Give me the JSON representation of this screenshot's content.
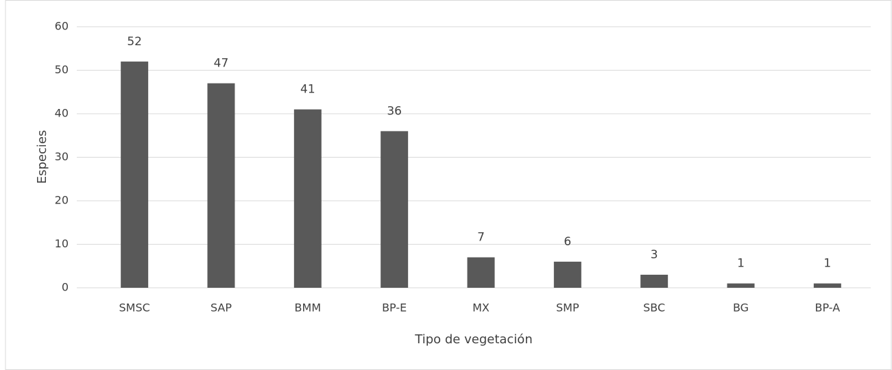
{
  "chart_data": {
    "type": "bar",
    "x_label": "Tipo de vegetación",
    "y_label": "Especies",
    "categories": [
      "SMSC",
      "SAP",
      "BMM",
      "BP-E",
      "MX",
      "SMP",
      "SBC",
      "BG",
      "BP-A"
    ],
    "values": [
      52,
      47,
      41,
      36,
      7,
      6,
      3,
      1,
      1
    ],
    "color": "#595959",
    "ylim": [
      0,
      60
    ],
    "yticks": [
      0,
      10,
      20,
      30,
      40,
      50,
      60
    ],
    "grid": true,
    "data_labels": true
  }
}
